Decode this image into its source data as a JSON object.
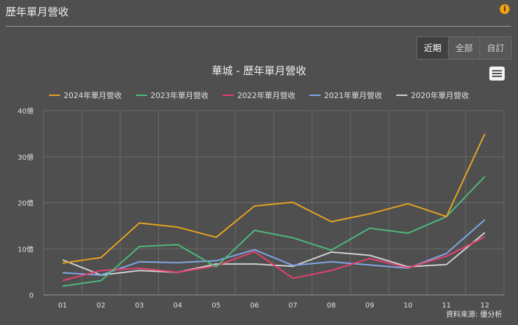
{
  "header": {
    "title": "歷年單月營收",
    "info_icon": "info-icon"
  },
  "range_buttons": [
    "近期",
    "全部",
    "自訂"
  ],
  "source_text": "資料來源: 優分析",
  "chart_data": {
    "type": "line",
    "title": "華城 - 歷年單月營收",
    "categories": [
      "01",
      "02",
      "03",
      "04",
      "05",
      "06",
      "07",
      "08",
      "09",
      "10",
      "11",
      "12"
    ],
    "y_ticks": [
      "0",
      "10億",
      "20億",
      "30億",
      "40億"
    ],
    "ylim": [
      0,
      40
    ],
    "series": [
      {
        "name": "2024年單月營收",
        "color": "#e6a321",
        "values": [
          6.9,
          8.1,
          15.6,
          14.7,
          12.5,
          19.3,
          20.1,
          15.9,
          17.6,
          19.8,
          17.0,
          35.0
        ]
      },
      {
        "name": "2023年單月營收",
        "color": "#4fb87a",
        "values": [
          1.9,
          3.1,
          10.5,
          10.9,
          6.1,
          14.0,
          12.4,
          9.7,
          14.5,
          13.4,
          17.0,
          25.7
        ]
      },
      {
        "name": "2022年單月營收",
        "color": "#e8406d",
        "values": [
          3.1,
          5.3,
          5.8,
          4.9,
          6.3,
          9.4,
          3.6,
          5.3,
          7.9,
          5.9,
          8.4,
          12.6
        ]
      },
      {
        "name": "2021年單月營收",
        "color": "#7ea8e6",
        "values": [
          4.8,
          4.3,
          7.2,
          7.0,
          7.4,
          9.8,
          6.4,
          7.2,
          6.5,
          5.8,
          9.0,
          16.3
        ]
      },
      {
        "name": "2020年單月營收",
        "color": "#d0d0d0",
        "values": [
          7.6,
          4.3,
          5.3,
          4.9,
          6.7,
          6.7,
          6.2,
          9.3,
          8.6,
          6.1,
          6.6,
          13.5
        ]
      }
    ]
  }
}
